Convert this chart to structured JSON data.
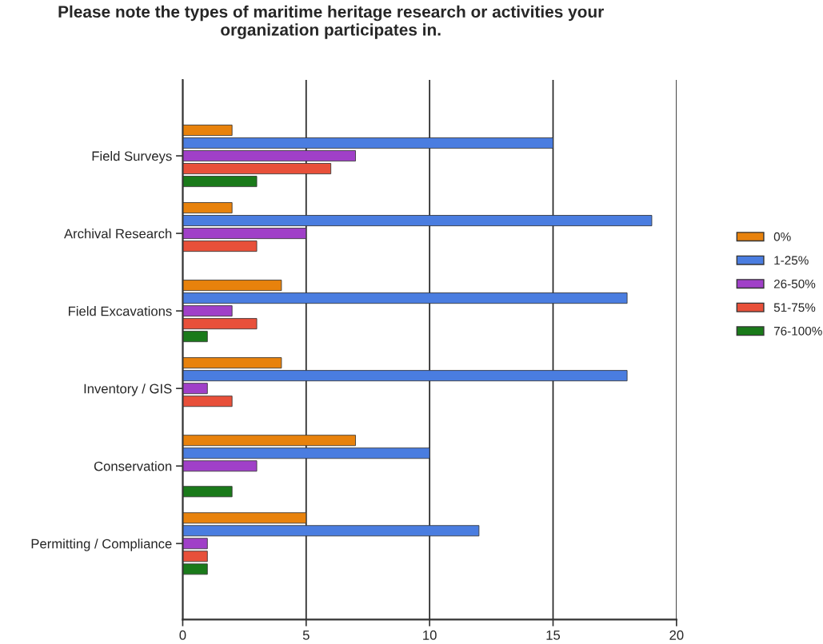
{
  "chart_data": {
    "type": "bar",
    "orientation": "horizontal",
    "title": "Please note the types of maritime heritage research or activities your\norganization participates in.",
    "categories": [
      "Field Surveys",
      "Archival Research",
      "Field Excavations",
      "Inventory / GIS",
      "Conservation",
      "Permitting / Compliance"
    ],
    "series": [
      {
        "name": "0%",
        "color": "#e8820c",
        "values": [
          2,
          2,
          4,
          4,
          7,
          5
        ]
      },
      {
        "name": "1-25%",
        "color": "#4a7de0",
        "values": [
          15,
          19,
          18,
          18,
          10,
          12
        ]
      },
      {
        "name": "26-50%",
        "color": "#a040c8",
        "values": [
          7,
          5,
          2,
          1,
          3,
          1
        ]
      },
      {
        "name": "51-75%",
        "color": "#e8503a",
        "values": [
          6,
          3,
          3,
          2,
          null,
          1
        ]
      },
      {
        "name": "76-100%",
        "color": "#1a7a1a",
        "values": [
          3,
          null,
          1,
          null,
          2,
          1
        ]
      }
    ],
    "xlim": [
      0,
      20
    ],
    "xticks": [
      0,
      5,
      10,
      15,
      20
    ],
    "grid": "x",
    "legend": "right"
  }
}
